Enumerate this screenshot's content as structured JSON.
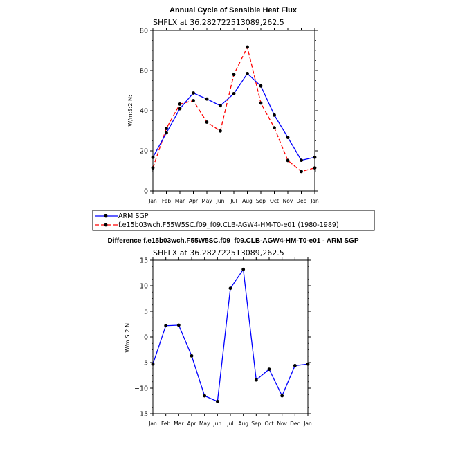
{
  "chart_data": [
    {
      "type": "line",
      "title": "Annual Cycle of Sensible Heat Flux",
      "subtitle": "SHFLX at 36.282722513089,262.5",
      "xlabel": "",
      "ylabel": "W/m:S:2:N:",
      "categories": [
        "Jan",
        "Feb",
        "Mar",
        "Apr",
        "May",
        "Jun",
        "Jul",
        "Aug",
        "Sep",
        "Oct",
        "Nov",
        "Dec",
        "Jan"
      ],
      "ylim": [
        0,
        80
      ],
      "yticks": [
        0,
        20,
        40,
        60,
        80
      ],
      "grid": false,
      "series": [
        {
          "name": "ARM SGP",
          "color": "#0000ff",
          "dash": "solid",
          "values": [
            16.8,
            29.0,
            41.0,
            48.8,
            45.8,
            42.5,
            48.5,
            58.5,
            52.3,
            37.8,
            26.7,
            15.3,
            16.8
          ]
        },
        {
          "name": "f.e15b03wch.F55W5SC.f09_f09.CLB-AGW4-HM-T0-e01 (1980-1989)",
          "color": "#ff0000",
          "dash": "dashed",
          "values": [
            11.5,
            31.2,
            43.3,
            45.0,
            34.3,
            29.9,
            58.0,
            71.7,
            43.8,
            31.5,
            15.2,
            9.7,
            11.5
          ]
        }
      ]
    },
    {
      "type": "line",
      "title": "Difference f.e15b03wch.F55W5SC.f09_f09.CLB-AGW4-HM-T0-e01 - ARM SGP",
      "subtitle": "SHFLX at 36.282722513089,262.5",
      "xlabel": "",
      "ylabel": "W/m:S:2:N:",
      "categories": [
        "Jan",
        "Feb",
        "Mar",
        "Apr",
        "May",
        "Jun",
        "Jul",
        "Aug",
        "Sep",
        "Oct",
        "Nov",
        "Dec",
        "Jan"
      ],
      "ylim": [
        -15,
        15
      ],
      "yticks": [
        -15,
        -10,
        -5,
        0,
        5,
        10,
        15
      ],
      "grid": false,
      "series": [
        {
          "name": "Difference",
          "color": "#0000ff",
          "dash": "solid",
          "values": [
            -5.3,
            2.2,
            2.3,
            -3.7,
            -11.5,
            -12.6,
            9.5,
            13.2,
            -8.4,
            -6.3,
            -11.5,
            -5.6,
            -5.3
          ]
        }
      ]
    }
  ]
}
